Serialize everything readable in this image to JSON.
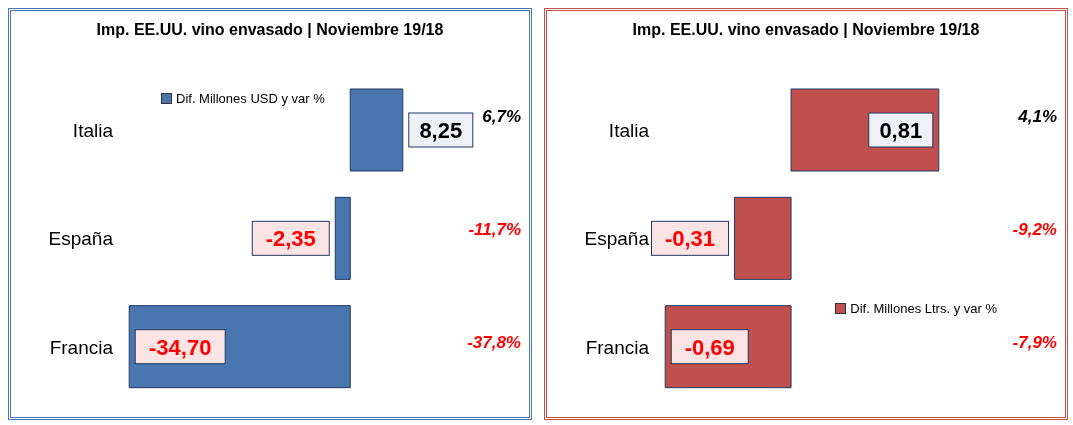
{
  "chart_data": [
    {
      "type": "bar",
      "orientation": "horizontal",
      "title": "Imp. EE.UU. vino envasado | Noviembre 19/18",
      "categories": [
        "Italia",
        "España",
        "Francia"
      ],
      "series": [
        {
          "name": "Dif. Millones USD y var %",
          "color": "#4a76b0",
          "values": [
            8.25,
            -2.35,
            -34.7
          ],
          "value_labels": [
            "8,25",
            "-2,35",
            "-34,70"
          ]
        }
      ],
      "annotations": [
        "6,7%",
        "-11,7%",
        "-37,8%"
      ],
      "legend": "top"
    },
    {
      "type": "bar",
      "orientation": "horizontal",
      "title": "Imp. EE.UU. vino envasado | Noviembre 19/18",
      "categories": [
        "Italia",
        "España",
        "Francia"
      ],
      "series": [
        {
          "name": "Dif. Millones Ltrs. y var %",
          "color": "#c0504d",
          "values": [
            0.81,
            -0.31,
            -0.69
          ],
          "value_labels": [
            "0,81",
            "-0,31",
            "-0,69"
          ]
        }
      ],
      "annotations": [
        "4,1%",
        "-9,2%",
        "-7,9%"
      ],
      "legend": "bottom right"
    }
  ]
}
